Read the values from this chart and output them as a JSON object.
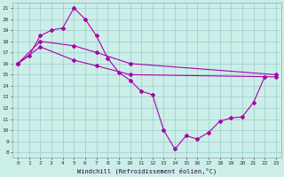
{
  "xlabel": "Windchill (Refroidissement éolien,°C)",
  "bg_color": "#cceee8",
  "grid_color": "#99cccc",
  "line_color": "#aa00aa",
  "xmin": 0,
  "xmax": 23,
  "ymin": 8,
  "ymax": 21,
  "series1_x": [
    0,
    1,
    2,
    3,
    4,
    5,
    6,
    7,
    8,
    9,
    10,
    11,
    12,
    13,
    14,
    15,
    16,
    17,
    18,
    19,
    20,
    21,
    22
  ],
  "series1_y": [
    16.0,
    16.7,
    18.5,
    19.0,
    19.2,
    21.0,
    20.0,
    18.5,
    16.5,
    15.2,
    14.5,
    13.5,
    13.2,
    10.0,
    8.3,
    9.5,
    9.2,
    9.8,
    10.8,
    11.1,
    11.2,
    12.5,
    14.8
  ],
  "series2_x": [
    0,
    2,
    5,
    7,
    10,
    23
  ],
  "series2_y": [
    16.0,
    18.0,
    17.6,
    17.0,
    16.0,
    15.0
  ],
  "series3_x": [
    0,
    2,
    5,
    7,
    10,
    23
  ],
  "series3_y": [
    16.0,
    17.5,
    16.3,
    15.8,
    15.0,
    14.8
  ]
}
